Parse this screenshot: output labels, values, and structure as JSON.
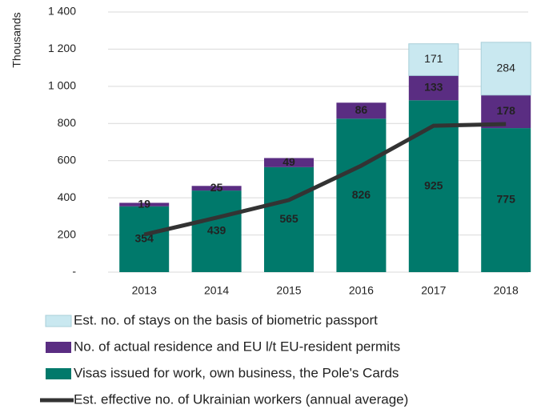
{
  "chart_data": {
    "type": "bar",
    "stacked": true,
    "y_label": "Thousands",
    "categories": [
      "2013",
      "2014",
      "2015",
      "2016",
      "2017",
      "2018"
    ],
    "series": [
      {
        "name": "Visas issued for work, own business, the Pole's Cards",
        "color": "#00796b",
        "label_color": "#ffffff",
        "values": [
          354,
          439,
          565,
          826,
          925,
          775
        ]
      },
      {
        "name": "No. of actual residence and EU l/t EU-resident permits",
        "color": "#5a2d82",
        "label_color": "#ffffff",
        "values": [
          19,
          25,
          49,
          86,
          133,
          178
        ]
      },
      {
        "name": "Est. no. of stays on the basis of biometric passport",
        "color": "#c9e8f0",
        "label_color": "#222222",
        "values": [
          null,
          null,
          null,
          null,
          171,
          284
        ]
      },
      {
        "name": "Est. effective no. of Ukrainian workers (annual average)",
        "type": "line",
        "color": "#333333",
        "values": [
          202,
          293,
          388,
          573,
          788,
          797
        ]
      }
    ],
    "legend_order": [
      2,
      1,
      0,
      3
    ],
    "ylim": [
      0,
      1400
    ],
    "yticks": [
      {
        "value": 0,
        "label": "-"
      },
      200,
      400,
      600,
      800,
      {
        "value": 1000,
        "label": "1 000"
      },
      {
        "value": 1200,
        "label": "1 200"
      },
      {
        "value": 1400,
        "label": "1 400"
      }
    ],
    "grid": true
  }
}
